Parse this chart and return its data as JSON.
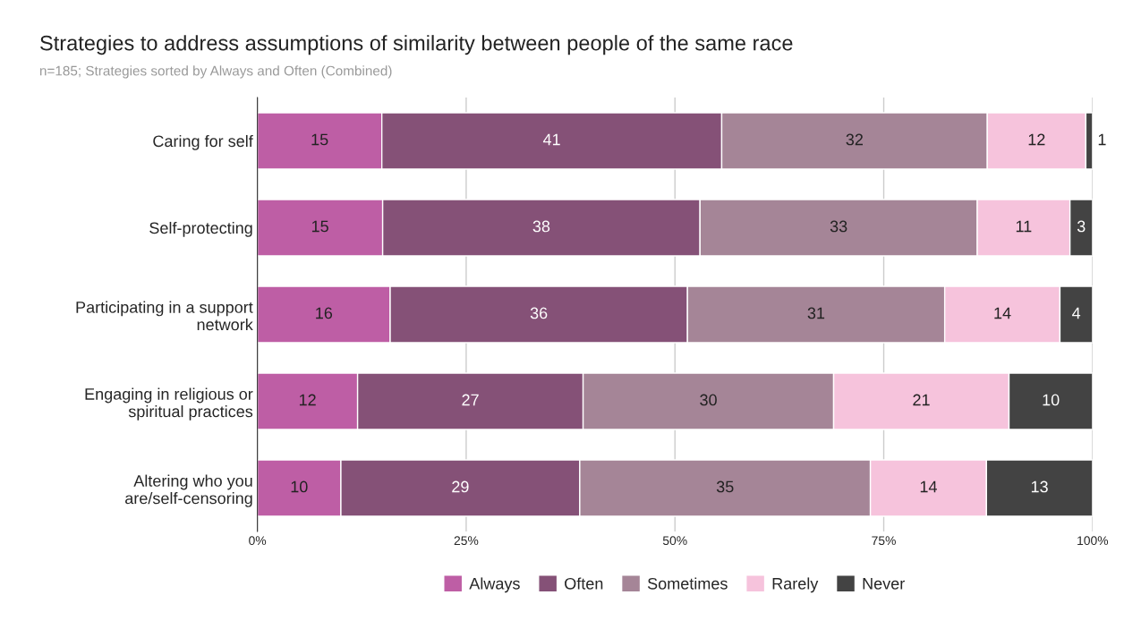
{
  "chart_data": {
    "type": "bar",
    "orientation": "horizontal",
    "stacked": true,
    "title": "Strategies to address assumptions of similarity between people of the same race",
    "subtitle": "n=185; Strategies sorted by Always and Often (Combined)",
    "categories": [
      "Caring for self",
      "Self-protecting",
      "Participating in a support network",
      "Engaging in religious or spiritual practices",
      "Altering who you are/self-censoring"
    ],
    "series": [
      {
        "name": "Always",
        "color": "#be5ea5",
        "values": [
          14.9,
          15.0,
          15.9,
          12.0,
          10.0
        ],
        "value_labels": [
          "15",
          "15",
          "16",
          "12",
          "10"
        ]
      },
      {
        "name": "Often",
        "color": "#855177",
        "values": [
          40.7,
          38.0,
          35.6,
          27.0,
          28.6
        ],
        "value_labels": [
          "41",
          "38",
          "36",
          "27",
          "29"
        ]
      },
      {
        "name": "Sometimes",
        "color": "#a58597",
        "values": [
          31.8,
          33.2,
          30.8,
          30.0,
          34.8
        ],
        "value_labels": [
          "32",
          "33",
          "31",
          "30",
          "35"
        ]
      },
      {
        "name": "Rarely",
        "color": "#f6c3dc",
        "values": [
          11.8,
          11.1,
          13.8,
          21.0,
          13.9
        ],
        "value_labels": [
          "12",
          "11",
          "14",
          "21",
          "14"
        ]
      },
      {
        "name": "Never",
        "color": "#434343",
        "values": [
          0.8,
          2.7,
          3.9,
          10.0,
          12.7
        ],
        "value_labels": [
          "1",
          "3",
          "4",
          "10",
          "13"
        ]
      }
    ],
    "xlim": [
      0,
      100
    ],
    "xticks": [
      {
        "value": 0,
        "label": "0%"
      },
      {
        "value": 25,
        "label": "25%"
      },
      {
        "value": 50,
        "label": "50%"
      },
      {
        "value": 75,
        "label": "75%"
      },
      {
        "value": 100,
        "label": "100%"
      }
    ],
    "grid": "x",
    "legend": "bottom"
  }
}
